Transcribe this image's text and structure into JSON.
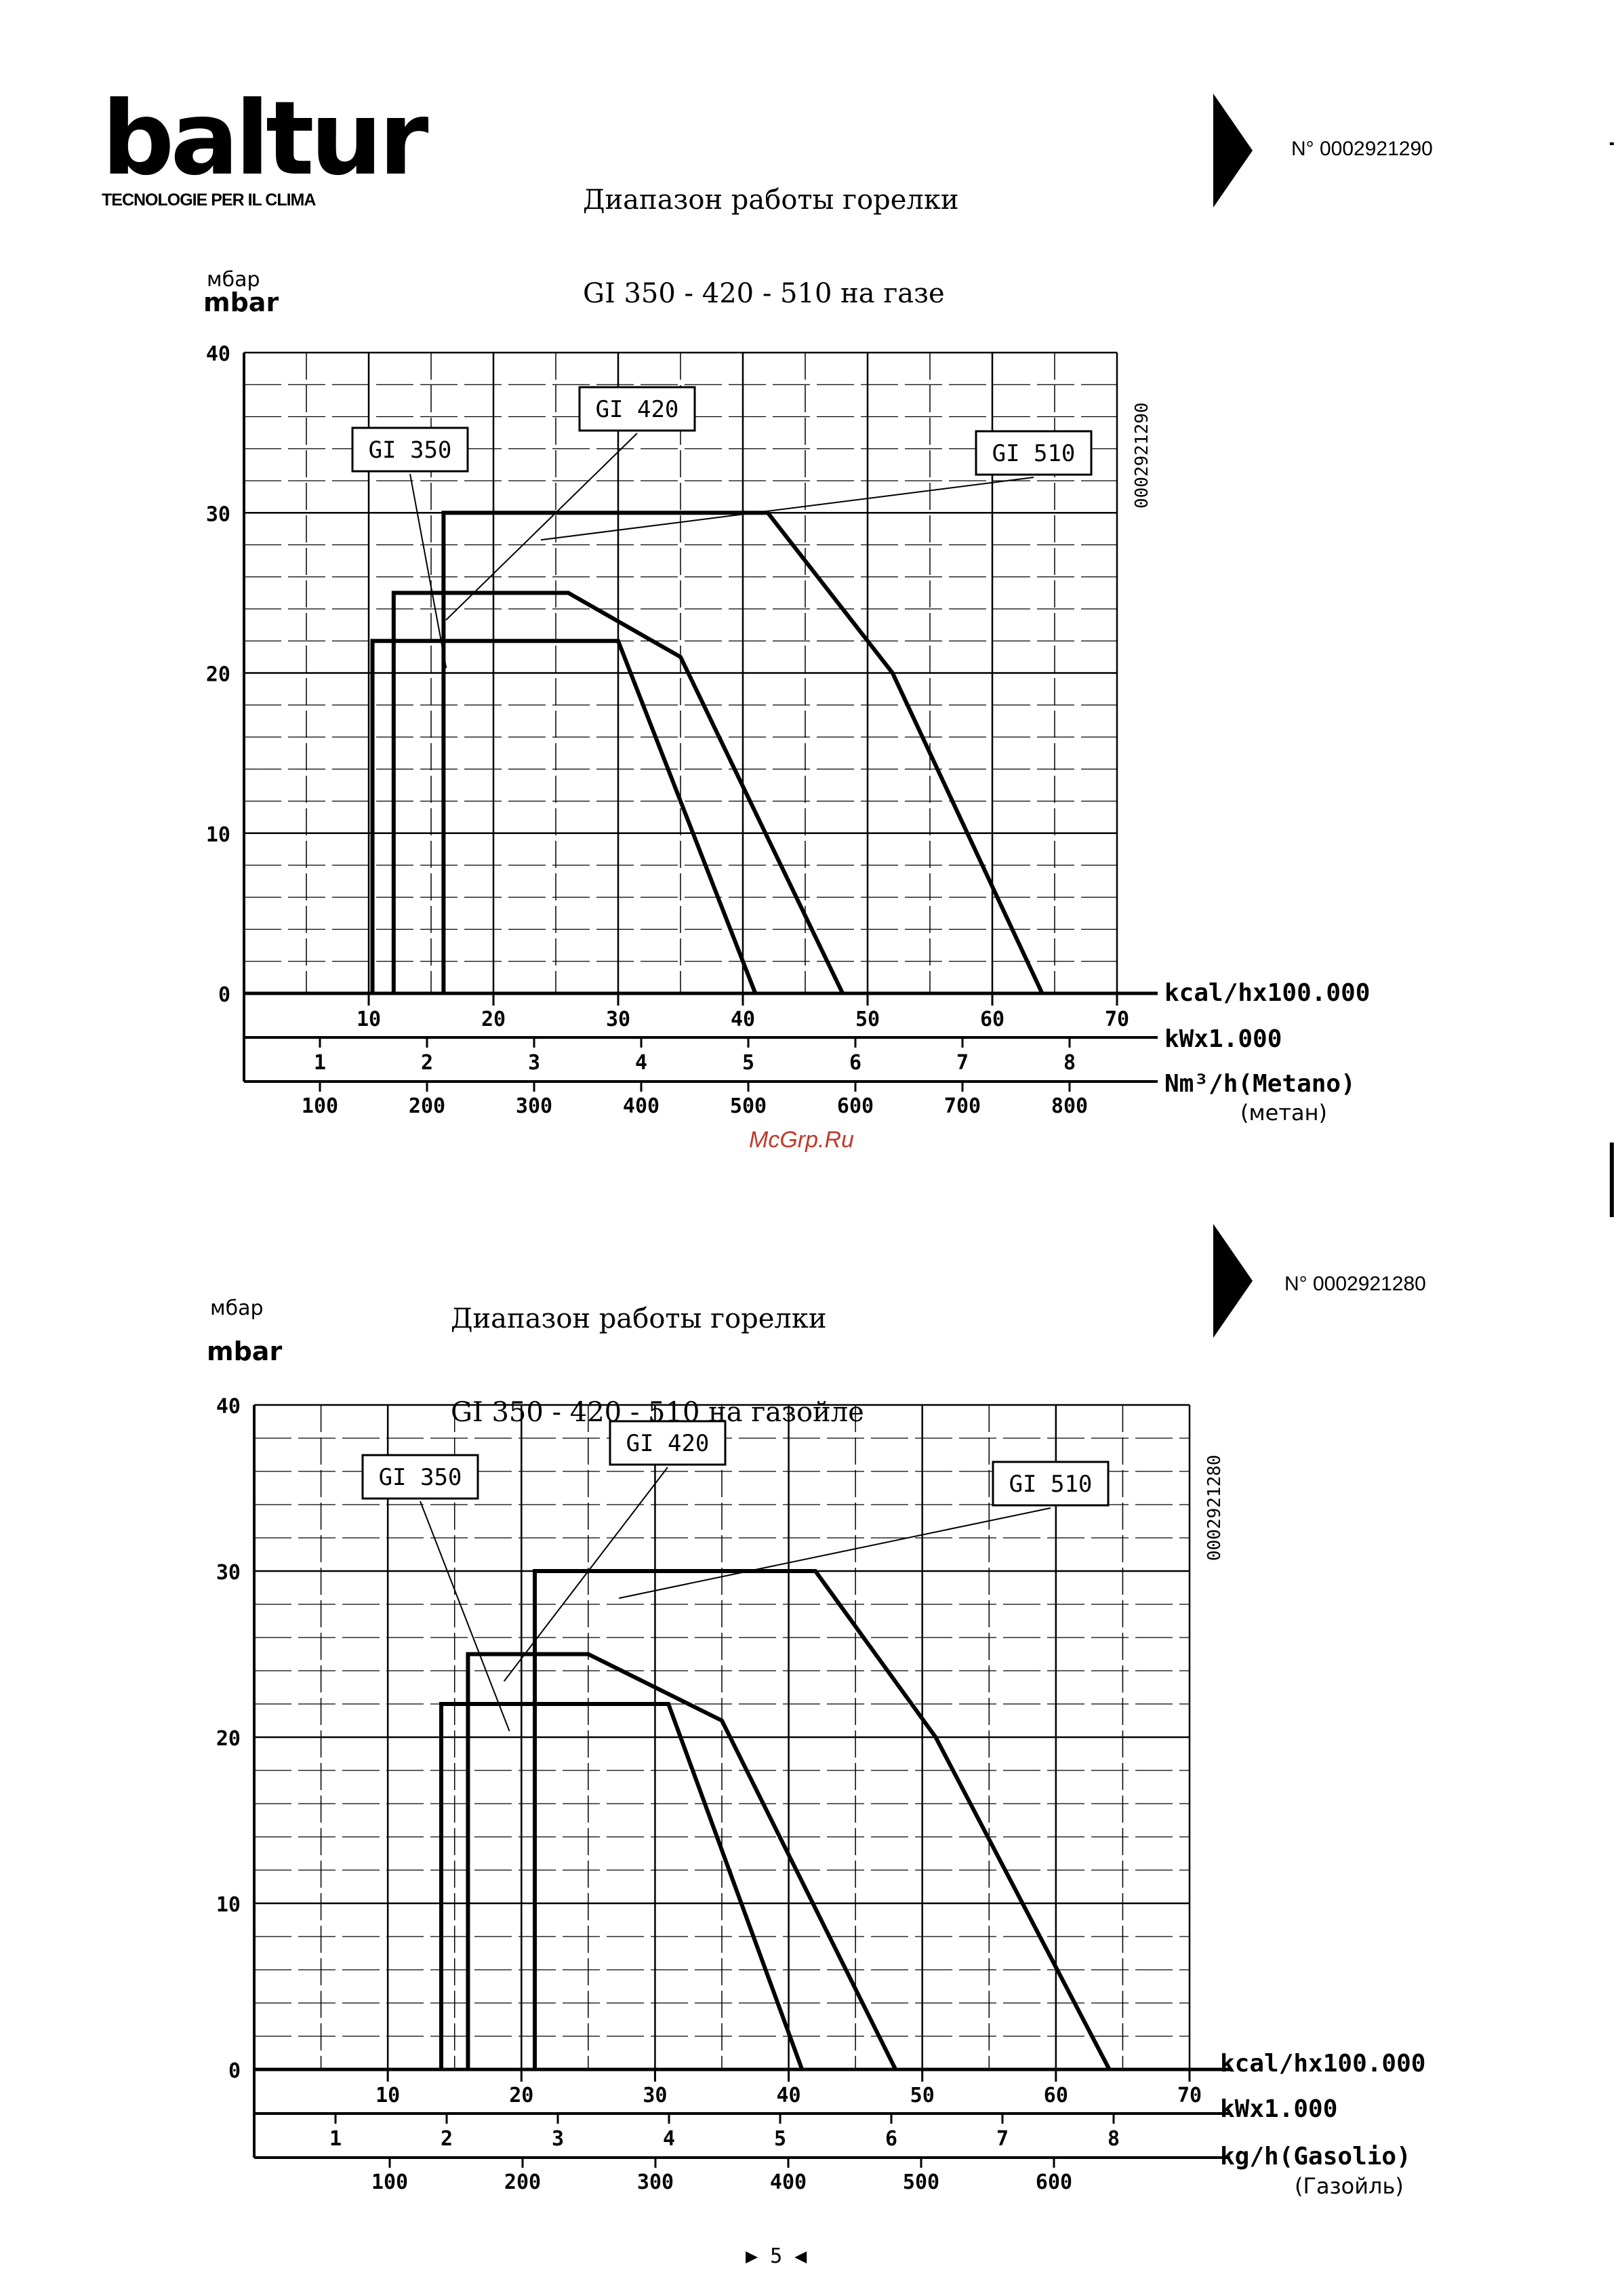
{
  "header": {
    "logo_text": "baltur",
    "logo_tagline": "TECNOLOGIE PER IL CLIMA"
  },
  "charts": [
    {
      "title_line1": "Диапазон работы горелки",
      "title_line2": "GI 350 - 420 - 510 на газе",
      "doc_number": "N° 0002921290",
      "side_code": "0002921290",
      "y_unit_ru": "мбар",
      "y_unit": "mbar",
      "axis_label_kcal": "kcal/hx100.000",
      "axis_label_kw": "kWx1.000",
      "axis_label_flow": "Nm³/h(Metano)",
      "axis_label_flow_ru": "(метан)"
    },
    {
      "title_line1": "Диапазон работы горелки",
      "title_line2": "GI 350 - 420 - 510 на газойле",
      "doc_number": "N° 0002921280",
      "side_code": "0002921280",
      "y_unit_ru": "мбар",
      "y_unit": "mbar",
      "axis_label_kcal": "kcal/hx100.000",
      "axis_label_kw": "kWx1.000",
      "axis_label_flow": "kg/h(Gasolio)",
      "axis_label_flow_ru": "(Газойль)"
    }
  ],
  "chart_data": [
    {
      "type": "line",
      "title": "Диапазон работы горелки GI 350 - 420 - 510 на газе",
      "ylabel": "mbar",
      "ylim": [
        0,
        40
      ],
      "xlim": [
        0,
        70
      ],
      "y_ticks": [
        "0",
        "10",
        "20",
        "30",
        "40"
      ],
      "x_axes": [
        {
          "label": "kcal/hx100.000",
          "ticks": [
            "10",
            "20",
            "30",
            "40",
            "50",
            "60",
            "70"
          ]
        },
        {
          "label": "kWx1.000",
          "ticks": [
            "1",
            "2",
            "3",
            "4",
            "5",
            "6",
            "7",
            "8"
          ]
        },
        {
          "label": "Nm³/h(Metano)",
          "ticks": [
            "100",
            "200",
            "300",
            "400",
            "500",
            "600",
            "700",
            "800"
          ]
        }
      ],
      "series": [
        {
          "name": "GI 350",
          "x": [
            10.3,
            10.3,
            30,
            41
          ],
          "y": [
            0,
            22,
            22,
            0
          ]
        },
        {
          "name": "GI 420",
          "x": [
            12,
            12,
            26,
            35,
            48
          ],
          "y": [
            0,
            25,
            25,
            21,
            0
          ]
        },
        {
          "name": "GI 510",
          "x": [
            16,
            16,
            42,
            52,
            64
          ],
          "y": [
            0,
            30,
            30,
            20,
            0
          ]
        }
      ],
      "grid": true
    },
    {
      "type": "line",
      "title": "Диапазон работы горелки GI 350 - 420 - 510 на газойле",
      "ylabel": "mbar",
      "ylim": [
        0,
        40
      ],
      "xlim": [
        0,
        70
      ],
      "y_ticks": [
        "0",
        "10",
        "20",
        "30",
        "40"
      ],
      "x_axes": [
        {
          "label": "kcal/hx100.000",
          "ticks": [
            "10",
            "20",
            "30",
            "40",
            "50",
            "60",
            "70"
          ]
        },
        {
          "label": "kWx1.000",
          "ticks": [
            "1",
            "2",
            "3",
            "4",
            "5",
            "6",
            "7",
            "8"
          ]
        },
        {
          "label": "kg/h(Gasolio)",
          "ticks": [
            "100",
            "200",
            "300",
            "400",
            "500",
            "600"
          ]
        }
      ],
      "series": [
        {
          "name": "GI 350",
          "x": [
            14,
            14,
            31,
            41
          ],
          "y": [
            0,
            22,
            22,
            0
          ]
        },
        {
          "name": "GI 420",
          "x": [
            16,
            16,
            25,
            35,
            48
          ],
          "y": [
            0,
            25,
            25,
            21,
            0
          ]
        },
        {
          "name": "GI 510",
          "x": [
            21,
            21,
            42,
            51,
            64
          ],
          "y": [
            0,
            30,
            30,
            20,
            0
          ]
        }
      ],
      "grid": true
    }
  ],
  "watermark": "McGrp.Ru",
  "footer": {
    "page_mark": "▶ 5 ◀"
  }
}
